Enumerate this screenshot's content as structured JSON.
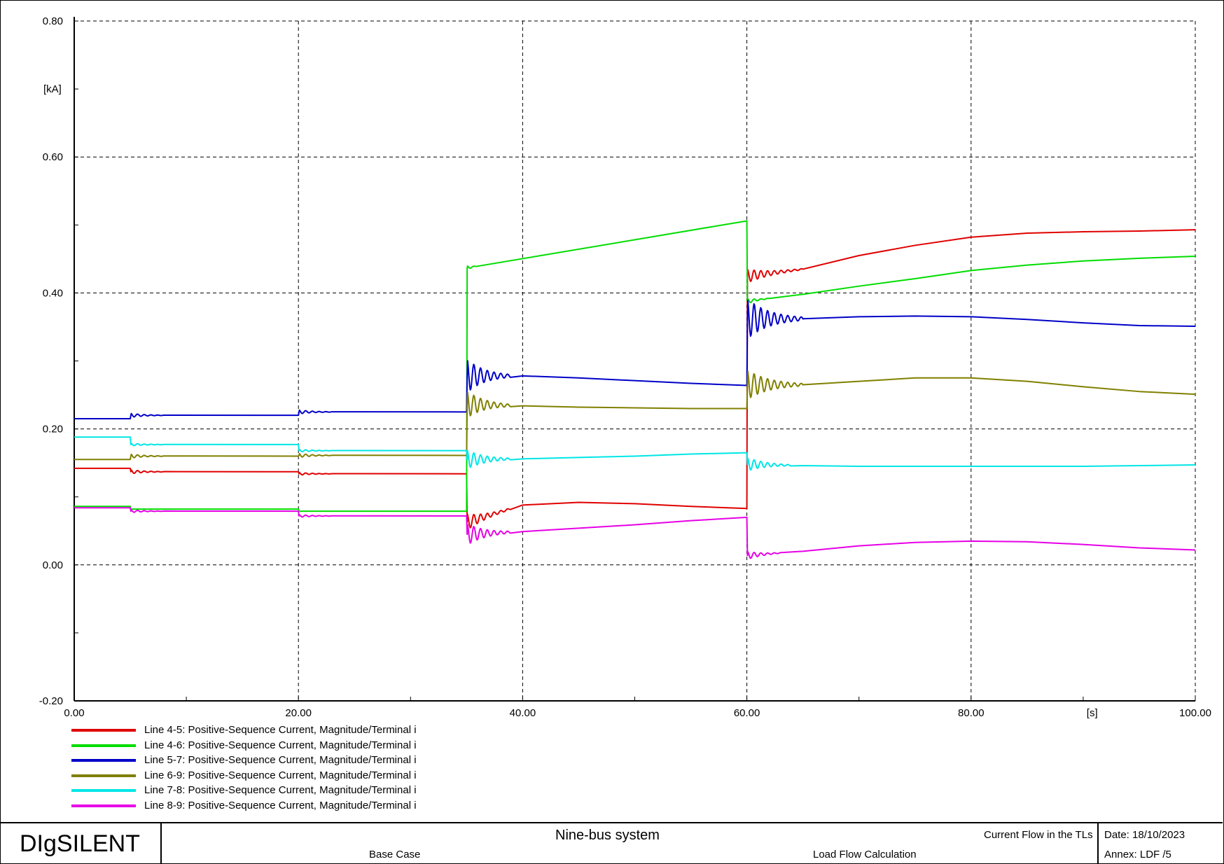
{
  "chart_data": {
    "type": "line",
    "title": "",
    "xlabel": "",
    "ylabel": "",
    "x_unit": "[s]",
    "y_unit": "[kA]",
    "xlim": [
      0,
      100
    ],
    "ylim": [
      -0.2,
      0.8
    ],
    "x_ticks": [
      "0.00",
      "20.00",
      "40.00",
      "60.00",
      "80.00",
      "100.00"
    ],
    "y_ticks": [
      "-0.20",
      "0.00",
      "0.20",
      "0.40",
      "0.60",
      "0.80"
    ],
    "grid": true,
    "legend_position": "bottom-left",
    "series": [
      {
        "name": "Line 4-5: Positive-Sequence Current, Magnitude/Terminal i",
        "color": "#e00000",
        "points": [
          [
            0,
            0.142
          ],
          [
            5,
            0.142
          ],
          [
            5.05,
            0.137
          ],
          [
            20,
            0.137
          ],
          [
            20.05,
            0.134
          ],
          [
            35,
            0.134
          ],
          [
            35.05,
            0.063
          ],
          [
            40,
            0.088
          ],
          [
            45,
            0.092
          ],
          [
            50,
            0.09
          ],
          [
            55,
            0.086
          ],
          [
            60,
            0.083
          ],
          [
            60.05,
            0.425
          ],
          [
            65,
            0.435
          ],
          [
            70,
            0.455
          ],
          [
            75,
            0.47
          ],
          [
            80,
            0.482
          ],
          [
            85,
            0.488
          ],
          [
            90,
            0.49
          ],
          [
            95,
            0.491
          ],
          [
            100,
            0.493
          ]
        ],
        "osc": [
          [
            5.05,
            0.003,
            0.6,
            3
          ],
          [
            20.05,
            0.002,
            0.6,
            3
          ],
          [
            35.05,
            0.012,
            0.6,
            4
          ],
          [
            60.05,
            0.01,
            0.6,
            5
          ]
        ]
      },
      {
        "name": "Line 4-6: Positive-Sequence Current, Magnitude/Terminal i",
        "color": "#00dd00",
        "points": [
          [
            0,
            0.086
          ],
          [
            5,
            0.086
          ],
          [
            5.05,
            0.082
          ],
          [
            20,
            0.082
          ],
          [
            20.05,
            0.079
          ],
          [
            35,
            0.079
          ],
          [
            35.05,
            0.437
          ],
          [
            60,
            0.506
          ],
          [
            60.05,
            0.388
          ],
          [
            65,
            0.398
          ],
          [
            70,
            0.41
          ],
          [
            75,
            0.421
          ],
          [
            80,
            0.433
          ],
          [
            85,
            0.441
          ],
          [
            90,
            0.447
          ],
          [
            95,
            0.451
          ],
          [
            100,
            0.454
          ]
        ],
        "osc": [
          [
            35.05,
            0.003,
            0.6,
            1
          ],
          [
            60.05,
            0.004,
            0.6,
            2
          ]
        ]
      },
      {
        "name": "Line 5-7: Positive-Sequence Current, Magnitude/Terminal i",
        "color": "#0000c8",
        "points": [
          [
            0,
            0.215
          ],
          [
            5,
            0.215
          ],
          [
            5.05,
            0.22
          ],
          [
            20,
            0.22
          ],
          [
            20.05,
            0.225
          ],
          [
            35,
            0.225
          ],
          [
            35.05,
            0.278
          ],
          [
            40,
            0.278
          ],
          [
            45,
            0.275
          ],
          [
            50,
            0.271
          ],
          [
            55,
            0.267
          ],
          [
            60,
            0.264
          ],
          [
            60.05,
            0.362
          ],
          [
            65,
            0.362
          ],
          [
            70,
            0.365
          ],
          [
            75,
            0.366
          ],
          [
            80,
            0.365
          ],
          [
            85,
            0.361
          ],
          [
            90,
            0.356
          ],
          [
            95,
            0.352
          ],
          [
            100,
            0.351
          ]
        ],
        "osc": [
          [
            5.05,
            0.003,
            0.6,
            3
          ],
          [
            20.05,
            0.003,
            0.6,
            3
          ],
          [
            35.05,
            0.025,
            0.6,
            4
          ],
          [
            60.05,
            0.03,
            0.6,
            5
          ]
        ]
      },
      {
        "name": "Line 6-9: Positive-Sequence Current, Magnitude/Terminal i",
        "color": "#808000",
        "points": [
          [
            0,
            0.155
          ],
          [
            5,
            0.155
          ],
          [
            5.05,
            0.16
          ],
          [
            20,
            0.16
          ],
          [
            20.05,
            0.161
          ],
          [
            35,
            0.161
          ],
          [
            35.05,
            0.236
          ],
          [
            40,
            0.234
          ],
          [
            45,
            0.232
          ],
          [
            50,
            0.231
          ],
          [
            55,
            0.23
          ],
          [
            60,
            0.23
          ],
          [
            60.05,
            0.265
          ],
          [
            65,
            0.265
          ],
          [
            70,
            0.27
          ],
          [
            75,
            0.275
          ],
          [
            80,
            0.275
          ],
          [
            85,
            0.27
          ],
          [
            90,
            0.262
          ],
          [
            95,
            0.255
          ],
          [
            100,
            0.251
          ]
        ],
        "osc": [
          [
            5.05,
            0.003,
            0.6,
            3
          ],
          [
            20.05,
            0.003,
            0.6,
            3
          ],
          [
            35.05,
            0.02,
            0.6,
            4
          ],
          [
            60.05,
            0.022,
            0.6,
            5
          ]
        ]
      },
      {
        "name": "Line 7-8: Positive-Sequence Current, Magnitude/Terminal i",
        "color": "#00e6e6",
        "points": [
          [
            0,
            0.188
          ],
          [
            5,
            0.188
          ],
          [
            5.05,
            0.177
          ],
          [
            20,
            0.177
          ],
          [
            20.05,
            0.168
          ],
          [
            35,
            0.168
          ],
          [
            35.05,
            0.155
          ],
          [
            40,
            0.156
          ],
          [
            45,
            0.158
          ],
          [
            50,
            0.16
          ],
          [
            55,
            0.163
          ],
          [
            60,
            0.165
          ],
          [
            60.05,
            0.148
          ],
          [
            65,
            0.146
          ],
          [
            70,
            0.145
          ],
          [
            80,
            0.145
          ],
          [
            90,
            0.145
          ],
          [
            95,
            0.146
          ],
          [
            100,
            0.147
          ]
        ],
        "osc": [
          [
            5.05,
            0.002,
            0.6,
            3
          ],
          [
            20.05,
            0.002,
            0.6,
            3
          ],
          [
            35.05,
            0.014,
            0.6,
            4
          ],
          [
            60.05,
            0.01,
            0.6,
            4
          ]
        ]
      },
      {
        "name": "Line 8-9: Positive-Sequence Current, Magnitude/Terminal i",
        "color": "#e600e6",
        "points": [
          [
            0,
            0.084
          ],
          [
            5,
            0.084
          ],
          [
            5.05,
            0.079
          ],
          [
            20,
            0.079
          ],
          [
            20.05,
            0.072
          ],
          [
            35,
            0.072
          ],
          [
            35.05,
            0.045
          ],
          [
            40,
            0.049
          ],
          [
            45,
            0.054
          ],
          [
            50,
            0.059
          ],
          [
            55,
            0.065
          ],
          [
            60,
            0.07
          ],
          [
            60.05,
            0.014
          ],
          [
            65,
            0.02
          ],
          [
            70,
            0.028
          ],
          [
            75,
            0.033
          ],
          [
            80,
            0.035
          ],
          [
            85,
            0.034
          ],
          [
            90,
            0.03
          ],
          [
            95,
            0.025
          ],
          [
            100,
            0.022
          ]
        ],
        "osc": [
          [
            5.05,
            0.002,
            0.6,
            3
          ],
          [
            20.05,
            0.002,
            0.6,
            3
          ],
          [
            35.05,
            0.016,
            0.6,
            4
          ],
          [
            60.05,
            0.006,
            0.6,
            3
          ]
        ]
      }
    ]
  },
  "title_block": {
    "brand": "DIgSILENT",
    "project": "Nine-bus system",
    "subtitle": "Current Flow in the TLs",
    "study_case": "Base Case",
    "calculation": "Load Flow Calculation",
    "date": "Date: 18/10/2023",
    "annex": "Annex: LDF /5"
  }
}
